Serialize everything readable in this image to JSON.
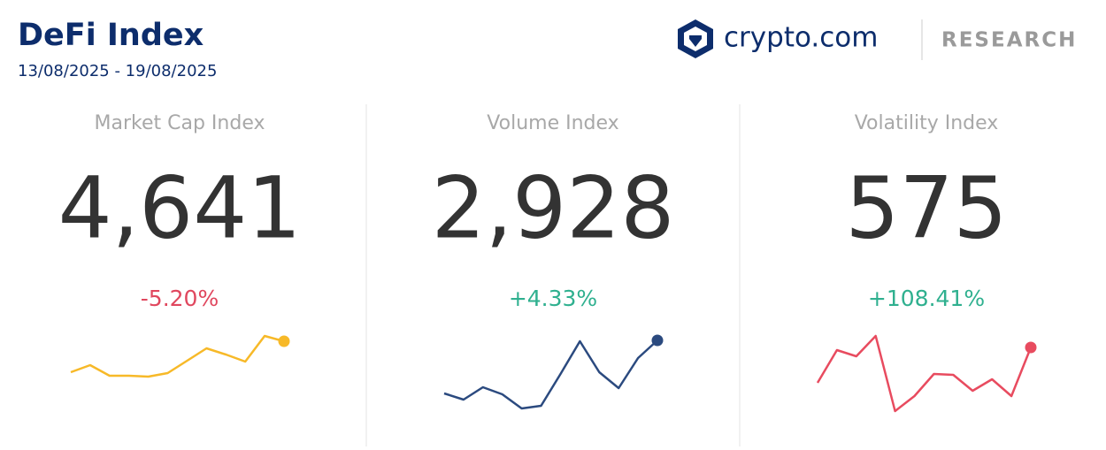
{
  "header": {
    "title": "DeFi Index",
    "subtitle": "13/08/2025 - 19/08/2025",
    "brand": "crypto.com",
    "section": "RESEARCH"
  },
  "chart_data": [
    {
      "type": "line",
      "title": "Market Cap Index",
      "index": "4,641",
      "change": "-5.20%",
      "color": "#f7b928",
      "change_color": "#e0475e",
      "values": [
        49,
        57,
        45,
        45,
        44,
        48,
        62,
        76,
        69,
        61,
        90,
        84
      ],
      "ylim": [
        0,
        95
      ]
    },
    {
      "type": "line",
      "title": "Volume Index",
      "index": "2,928",
      "change": "+4.33%",
      "color": "#2b4a7f",
      "change_color": "#2fb08f",
      "values": [
        25,
        18,
        32,
        24,
        8,
        11,
        47,
        84,
        49,
        31,
        65,
        85
      ],
      "ylim": [
        0,
        95
      ]
    },
    {
      "type": "line",
      "title": "Volatility Index",
      "index": "575",
      "change": "+108.41%",
      "color": "#e84b5f",
      "change_color": "#2fb08f",
      "values": [
        37,
        74,
        67,
        90,
        5,
        22,
        47,
        46,
        28,
        41,
        22,
        77
      ],
      "ylim": [
        0,
        95
      ]
    }
  ]
}
